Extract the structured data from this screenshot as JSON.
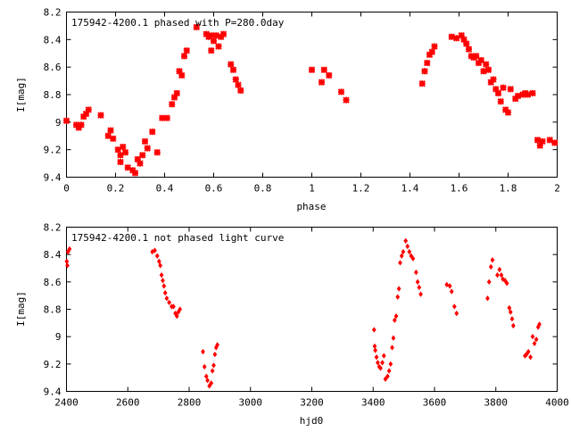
{
  "chart_data": [
    {
      "type": "scatter",
      "title": "175942-4200.1 phased with P=280.0day",
      "xlabel": "phase",
      "ylabel": "I[mag]",
      "xlim": [
        0,
        2
      ],
      "ylim": [
        9.4,
        8.2
      ],
      "y_inverted": true,
      "x_ticks": [
        "0",
        "0.2",
        "0.4",
        "0.6",
        "0.8",
        "1",
        "1.2",
        "1.4",
        "1.6",
        "1.8",
        "2"
      ],
      "y_ticks": [
        "8.2",
        "8.4",
        "8.6",
        "8.8",
        "9",
        "9.2",
        "9.4"
      ],
      "marker": "cross",
      "color": "#ff0000",
      "points": [
        [
          0.0,
          8.99
        ],
        [
          0.04,
          9.02
        ],
        [
          0.05,
          9.04
        ],
        [
          0.06,
          9.02
        ],
        [
          0.07,
          8.96
        ],
        [
          0.08,
          8.94
        ],
        [
          0.09,
          8.91
        ],
        [
          0.14,
          8.95
        ],
        [
          0.17,
          9.1
        ],
        [
          0.18,
          9.06
        ],
        [
          0.19,
          9.12
        ],
        [
          0.21,
          9.2
        ],
        [
          0.22,
          9.24
        ],
        [
          0.22,
          9.29
        ],
        [
          0.23,
          9.18
        ],
        [
          0.24,
          9.22
        ],
        [
          0.25,
          9.33
        ],
        [
          0.27,
          9.35
        ],
        [
          0.28,
          9.37
        ],
        [
          0.29,
          9.27
        ],
        [
          0.3,
          9.3
        ],
        [
          0.31,
          9.24
        ],
        [
          0.32,
          9.14
        ],
        [
          0.33,
          9.19
        ],
        [
          0.35,
          9.07
        ],
        [
          0.37,
          9.22
        ],
        [
          0.39,
          8.97
        ],
        [
          0.41,
          8.97
        ],
        [
          0.43,
          8.87
        ],
        [
          0.44,
          8.82
        ],
        [
          0.45,
          8.79
        ],
        [
          0.46,
          8.63
        ],
        [
          0.47,
          8.66
        ],
        [
          0.48,
          8.52
        ],
        [
          0.49,
          8.48
        ],
        [
          0.53,
          8.31
        ],
        [
          0.57,
          8.36
        ],
        [
          0.58,
          8.38
        ],
        [
          0.59,
          8.37
        ],
        [
          0.59,
          8.48
        ],
        [
          0.6,
          8.41
        ],
        [
          0.61,
          8.37
        ],
        [
          0.62,
          8.45
        ],
        [
          0.63,
          8.38
        ],
        [
          0.64,
          8.36
        ],
        [
          0.67,
          8.58
        ],
        [
          0.68,
          8.62
        ],
        [
          0.69,
          8.69
        ],
        [
          0.7,
          8.73
        ],
        [
          0.71,
          8.77
        ],
        [
          1.0,
          8.62
        ],
        [
          1.04,
          8.71
        ],
        [
          1.05,
          8.62
        ],
        [
          1.07,
          8.66
        ],
        [
          1.12,
          8.78
        ],
        [
          1.14,
          8.84
        ],
        [
          1.45,
          8.72
        ],
        [
          1.46,
          8.63
        ],
        [
          1.47,
          8.57
        ],
        [
          1.48,
          8.51
        ],
        [
          1.49,
          8.49
        ],
        [
          1.5,
          8.45
        ],
        [
          1.57,
          8.38
        ],
        [
          1.59,
          8.39
        ],
        [
          1.61,
          8.37
        ],
        [
          1.62,
          8.4
        ],
        [
          1.63,
          8.43
        ],
        [
          1.64,
          8.47
        ],
        [
          1.65,
          8.52
        ],
        [
          1.66,
          8.53
        ],
        [
          1.67,
          8.52
        ],
        [
          1.68,
          8.57
        ],
        [
          1.69,
          8.55
        ],
        [
          1.7,
          8.63
        ],
        [
          1.71,
          8.58
        ],
        [
          1.72,
          8.62
        ],
        [
          1.73,
          8.71
        ],
        [
          1.74,
          8.69
        ],
        [
          1.75,
          8.76
        ],
        [
          1.76,
          8.79
        ],
        [
          1.77,
          8.85
        ],
        [
          1.78,
          8.75
        ],
        [
          1.79,
          8.91
        ],
        [
          1.8,
          8.93
        ],
        [
          1.81,
          8.76
        ],
        [
          1.83,
          8.83
        ],
        [
          1.84,
          8.81
        ],
        [
          1.86,
          8.8
        ],
        [
          1.87,
          8.79
        ],
        [
          1.88,
          8.8
        ],
        [
          1.9,
          8.79
        ],
        [
          1.92,
          9.13
        ],
        [
          1.93,
          9.17
        ],
        [
          1.94,
          9.14
        ],
        [
          1.97,
          9.13
        ],
        [
          1.99,
          9.15
        ]
      ]
    },
    {
      "type": "scatter",
      "title": "175942-4200.1 not phased light curve",
      "xlabel": "hjd0",
      "ylabel": "I[mag]",
      "xlim": [
        2400,
        4000
      ],
      "ylim": [
        9.4,
        8.2
      ],
      "y_inverted": true,
      "x_ticks": [
        "2400",
        "2600",
        "2800",
        "3000",
        "3200",
        "3400",
        "3600",
        "3800",
        "4000"
      ],
      "y_ticks": [
        "8.2",
        "8.4",
        "8.6",
        "8.8",
        "9",
        "9.2",
        "9.4"
      ],
      "marker": "diamond",
      "color": "#ff0000",
      "points": [
        [
          2401,
          8.45
        ],
        [
          2403,
          8.48
        ],
        [
          2405,
          8.38
        ],
        [
          2410,
          8.36
        ],
        [
          2680,
          8.38
        ],
        [
          2688,
          8.37
        ],
        [
          2696,
          8.41
        ],
        [
          2702,
          8.45
        ],
        [
          2706,
          8.48
        ],
        [
          2710,
          8.55
        ],
        [
          2714,
          8.59
        ],
        [
          2718,
          8.63
        ],
        [
          2722,
          8.68
        ],
        [
          2727,
          8.72
        ],
        [
          2735,
          8.75
        ],
        [
          2743,
          8.78
        ],
        [
          2749,
          8.78
        ],
        [
          2755,
          8.83
        ],
        [
          2760,
          8.85
        ],
        [
          2765,
          8.82
        ],
        [
          2770,
          8.8
        ],
        [
          2845,
          9.11
        ],
        [
          2850,
          9.22
        ],
        [
          2856,
          9.29
        ],
        [
          2860,
          9.32
        ],
        [
          2866,
          9.36
        ],
        [
          2872,
          9.34
        ],
        [
          2876,
          9.25
        ],
        [
          2880,
          9.21
        ],
        [
          2884,
          9.13
        ],
        [
          2888,
          9.08
        ],
        [
          2892,
          9.06
        ],
        [
          3403,
          8.95
        ],
        [
          3405,
          9.07
        ],
        [
          3407,
          9.1
        ],
        [
          3411,
          9.15
        ],
        [
          3415,
          9.19
        ],
        [
          3420,
          9.22
        ],
        [
          3424,
          9.23
        ],
        [
          3430,
          9.19
        ],
        [
          3435,
          9.14
        ],
        [
          3440,
          9.31
        ],
        [
          3447,
          9.29
        ],
        [
          3452,
          9.25
        ],
        [
          3457,
          9.2
        ],
        [
          3462,
          9.08
        ],
        [
          3466,
          9.01
        ],
        [
          3470,
          8.88
        ],
        [
          3475,
          8.85
        ],
        [
          3480,
          8.71
        ],
        [
          3484,
          8.65
        ],
        [
          3488,
          8.46
        ],
        [
          3493,
          8.41
        ],
        [
          3498,
          8.38
        ],
        [
          3506,
          8.3
        ],
        [
          3512,
          8.34
        ],
        [
          3518,
          8.38
        ],
        [
          3524,
          8.41
        ],
        [
          3530,
          8.43
        ],
        [
          3540,
          8.53
        ],
        [
          3545,
          8.6
        ],
        [
          3550,
          8.64
        ],
        [
          3555,
          8.69
        ],
        [
          3640,
          8.62
        ],
        [
          3650,
          8.63
        ],
        [
          3656,
          8.67
        ],
        [
          3665,
          8.78
        ],
        [
          3672,
          8.83
        ],
        [
          3773,
          8.72
        ],
        [
          3778,
          8.6
        ],
        [
          3784,
          8.49
        ],
        [
          3789,
          8.44
        ],
        [
          3805,
          8.55
        ],
        [
          3812,
          8.51
        ],
        [
          3818,
          8.55
        ],
        [
          3823,
          8.58
        ],
        [
          3830,
          8.59
        ],
        [
          3836,
          8.61
        ],
        [
          3844,
          8.79
        ],
        [
          3848,
          8.82
        ],
        [
          3853,
          8.87
        ],
        [
          3857,
          8.92
        ],
        [
          3895,
          9.14
        ],
        [
          3900,
          9.13
        ],
        [
          3906,
          9.11
        ],
        [
          3913,
          9.15
        ],
        [
          3920,
          9.0
        ],
        [
          3926,
          9.05
        ],
        [
          3932,
          9.02
        ],
        [
          3938,
          8.93
        ],
        [
          3942,
          8.91
        ]
      ]
    }
  ]
}
